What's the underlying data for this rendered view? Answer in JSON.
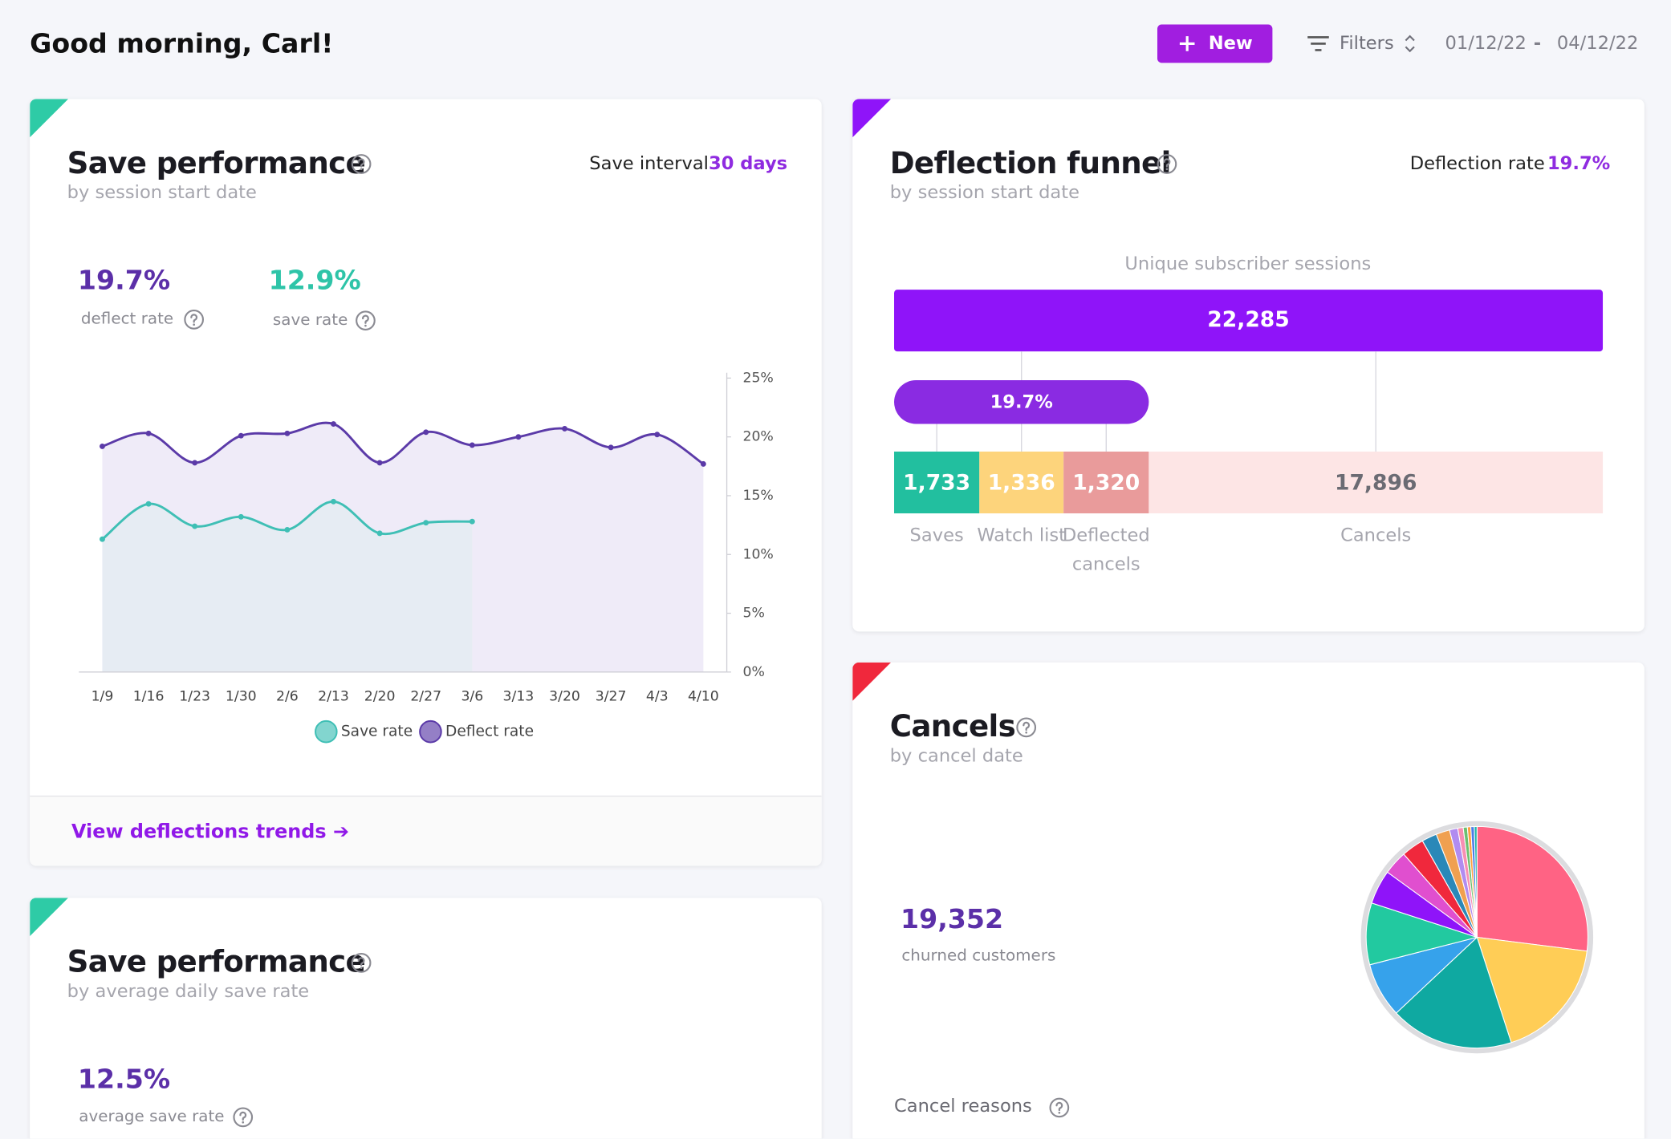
{
  "header": {
    "greeting": "Good morning, Carl!",
    "new_button": "New",
    "filters": "Filters",
    "date_start": "01/12/22",
    "date_separator": "-",
    "date_end": "04/12/22"
  },
  "save_performance": {
    "title": "Save performance",
    "subtitle": "by session start date",
    "interval_label": "Save interval",
    "interval_value": "30 days",
    "metrics": [
      {
        "value": "19.7%",
        "label": "deflect rate"
      },
      {
        "value": "12.9%",
        "label": "save rate"
      }
    ],
    "link": "View deflections trends ➔",
    "chart_data": {
      "type": "line",
      "categories": [
        "1/9",
        "1/16",
        "1/23",
        "1/30",
        "2/6",
        "2/13",
        "2/20",
        "2/27",
        "3/6",
        "3/13",
        "3/20",
        "3/27",
        "4/3",
        "4/10"
      ],
      "series": [
        {
          "name": "Save rate",
          "color": "#3fbfb5",
          "fill": "#e6ecf3",
          "values": [
            11.3,
            14.3,
            12.4,
            13.2,
            12.1,
            14.5,
            11.8,
            12.7,
            12.8,
            null,
            null,
            null,
            null,
            null
          ]
        },
        {
          "name": "Deflect rate",
          "color": "#5b3aa8",
          "fill": "#efebf8",
          "values": [
            19.2,
            20.3,
            17.8,
            20.1,
            20.3,
            21.1,
            17.8,
            20.4,
            19.3,
            20.0,
            20.7,
            19.1,
            20.2,
            17.7
          ]
        }
      ],
      "ylim": [
        0,
        25
      ],
      "yticks": [
        {
          "value": 0,
          "label": "0%"
        },
        {
          "value": 5,
          "label": "5%"
        },
        {
          "value": 10,
          "label": "10%"
        },
        {
          "value": 15,
          "label": "15%"
        },
        {
          "value": 20,
          "label": "20%"
        },
        {
          "value": 25,
          "label": "25%"
        }
      ],
      "grid": false,
      "legend": "bottom"
    }
  },
  "save_performance_daily": {
    "title": "Save performance",
    "subtitle": "by average daily save rate",
    "metric_value": "12.5%",
    "metric_label": "average save rate"
  },
  "deflection_funnel": {
    "title": "Deflection funnel",
    "subtitle": "by session start date",
    "rate_label": "Deflection rate",
    "rate_value": "19.7%",
    "chart_data": {
      "type": "funnel",
      "title": "Unique subscriber sessions",
      "total": 22285,
      "total_label": "22,285",
      "total_color": "#8f14f9",
      "deflection": 19.7,
      "deflection_label": "19.7%",
      "deflection_color": "#8a2be2",
      "categories": [
        "Saves",
        "Watch list",
        "Deflected cancels",
        "Cancels"
      ],
      "values": [
        1733,
        1336,
        1320,
        17896
      ],
      "value_labels": [
        "1,733",
        "1,336",
        "1,320",
        "17,896"
      ],
      "colors": [
        "#22bf9f",
        "#fdd47c",
        "#e99b9b",
        "#fde5e5"
      ]
    }
  },
  "cancels": {
    "title": "Cancels",
    "subtitle": "by cancel date",
    "metric_value": "19,352",
    "metric_label": "churned customers",
    "reasons_label": "Cancel reasons",
    "chart_data": {
      "type": "pie",
      "values": [
        27,
        18,
        18,
        8,
        9,
        5,
        3.5,
        3.3,
        2.2,
        2,
        1.2,
        0.8,
        0.6,
        0.5,
        0.5,
        0.4
      ],
      "colors": [
        "#ff6384",
        "#ffcd56",
        "#0fa9a1",
        "#36a2eb",
        "#22c9a0",
        "#8f14f9",
        "#e04fcf",
        "#f0283c",
        "#2a88b8",
        "#f0a050",
        "#b18cf0",
        "#f78fb3",
        "#6cc070",
        "#ff9f40",
        "#4b7be8",
        "#1fb7a7"
      ]
    }
  }
}
